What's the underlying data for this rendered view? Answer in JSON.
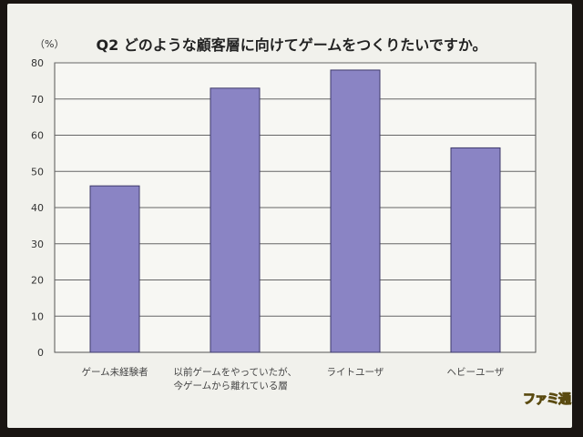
{
  "chart_data": {
    "type": "bar",
    "title": "Q2  どのような顧客層に向けてゲームをつくりたいですか。",
    "ylabel": "（%）",
    "xlabel": "",
    "ylim": [
      0,
      80
    ],
    "yticks": [
      0,
      10,
      20,
      30,
      40,
      50,
      60,
      70,
      80
    ],
    "grid": true,
    "categories": [
      "ゲーム未経験者",
      "以前ゲームをやっていたが、\n今ゲームから離れている層",
      "ライトユーザ",
      "ヘビーユーザ"
    ],
    "values": [
      46,
      73,
      78,
      56.5
    ],
    "bar_color": "#8a84c4"
  },
  "logo_text": "ファミ通"
}
